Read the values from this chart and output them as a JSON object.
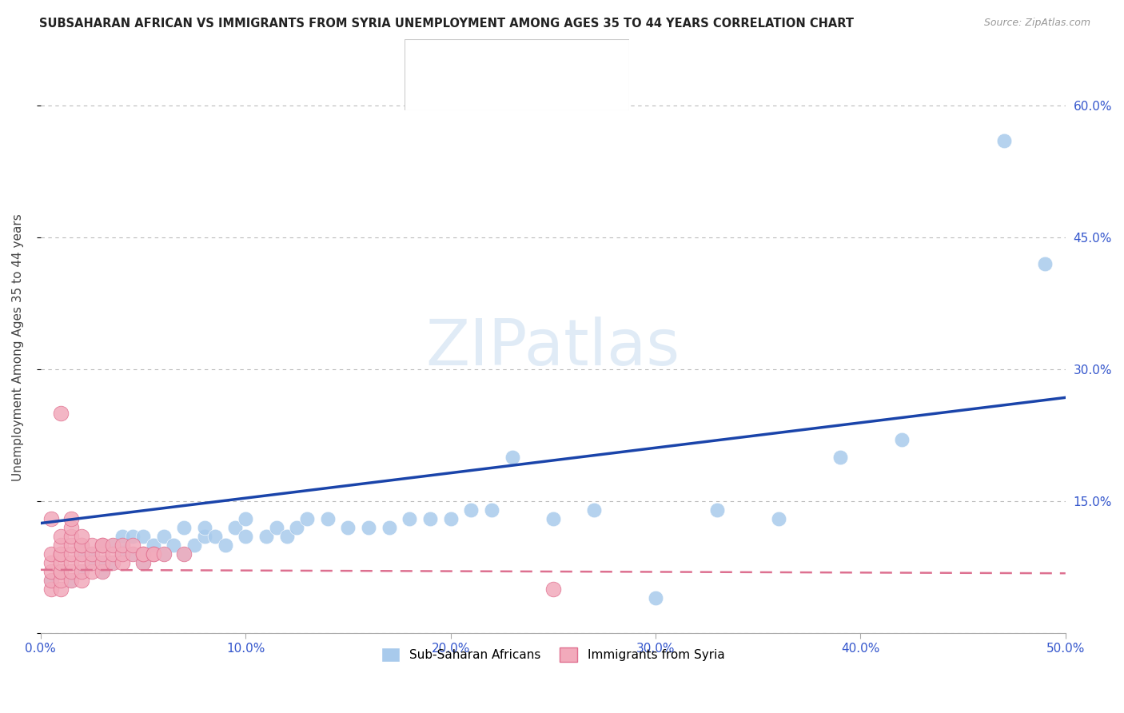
{
  "title": "SUBSAHARAN AFRICAN VS IMMIGRANTS FROM SYRIA UNEMPLOYMENT AMONG AGES 35 TO 44 YEARS CORRELATION CHART",
  "source": "Source: ZipAtlas.com",
  "ylabel": "Unemployment Among Ages 35 to 44 years",
  "xlim": [
    0.0,
    0.5
  ],
  "ylim": [
    0.0,
    0.65
  ],
  "xticks": [
    0.0,
    0.1,
    0.2,
    0.3,
    0.4,
    0.5
  ],
  "yticks": [
    0.0,
    0.15,
    0.3,
    0.45,
    0.6
  ],
  "ytick_labels": [
    "",
    "15.0%",
    "30.0%",
    "45.0%",
    "60.0%"
  ],
  "xtick_labels": [
    "0.0%",
    "10.0%",
    "20.0%",
    "30.0%",
    "40.0%",
    "50.0%"
  ],
  "blue_color": "#A8CAEC",
  "pink_color": "#F2AABB",
  "line_blue_color": "#1A44AA",
  "line_pink_color": "#DD7090",
  "watermark_text": "ZIPatlas",
  "blue_line_x0": 0.0,
  "blue_line_y0": 0.125,
  "blue_line_x1": 0.5,
  "blue_line_y1": 0.268,
  "pink_line_x0": 0.0,
  "pink_line_y0": 0.072,
  "pink_line_x1": 0.5,
  "pink_line_y1": 0.068,
  "sub_saharan_x": [
    0.005,
    0.01,
    0.015,
    0.02,
    0.02,
    0.02,
    0.025,
    0.025,
    0.03,
    0.03,
    0.03,
    0.035,
    0.035,
    0.04,
    0.04,
    0.04,
    0.045,
    0.045,
    0.05,
    0.05,
    0.05,
    0.055,
    0.06,
    0.06,
    0.065,
    0.07,
    0.07,
    0.075,
    0.08,
    0.08,
    0.085,
    0.09,
    0.095,
    0.1,
    0.1,
    0.11,
    0.115,
    0.12,
    0.125,
    0.13,
    0.14,
    0.15,
    0.16,
    0.17,
    0.18,
    0.19,
    0.2,
    0.21,
    0.22,
    0.23,
    0.25,
    0.27,
    0.3,
    0.33,
    0.36,
    0.39,
    0.42,
    0.47,
    0.49
  ],
  "sub_saharan_y": [
    0.06,
    0.07,
    0.06,
    0.07,
    0.09,
    0.1,
    0.08,
    0.09,
    0.07,
    0.08,
    0.1,
    0.08,
    0.1,
    0.09,
    0.1,
    0.11,
    0.09,
    0.11,
    0.08,
    0.09,
    0.11,
    0.1,
    0.09,
    0.11,
    0.1,
    0.09,
    0.12,
    0.1,
    0.11,
    0.12,
    0.11,
    0.1,
    0.12,
    0.11,
    0.13,
    0.11,
    0.12,
    0.11,
    0.12,
    0.13,
    0.13,
    0.12,
    0.12,
    0.12,
    0.13,
    0.13,
    0.13,
    0.14,
    0.14,
    0.2,
    0.13,
    0.14,
    0.04,
    0.14,
    0.13,
    0.2,
    0.22,
    0.56,
    0.42
  ],
  "syria_x": [
    0.005,
    0.005,
    0.005,
    0.005,
    0.005,
    0.01,
    0.01,
    0.01,
    0.01,
    0.01,
    0.01,
    0.01,
    0.01,
    0.01,
    0.015,
    0.015,
    0.015,
    0.015,
    0.015,
    0.015,
    0.02,
    0.02,
    0.02,
    0.02,
    0.02,
    0.02,
    0.025,
    0.025,
    0.025,
    0.025,
    0.03,
    0.03,
    0.03,
    0.03,
    0.03,
    0.035,
    0.035,
    0.035,
    0.04,
    0.04,
    0.04,
    0.045,
    0.045,
    0.05,
    0.05,
    0.05,
    0.055,
    0.055,
    0.06,
    0.07,
    0.005,
    0.01,
    0.015,
    0.015,
    0.02,
    0.25
  ],
  "syria_y": [
    0.05,
    0.06,
    0.07,
    0.08,
    0.09,
    0.05,
    0.06,
    0.07,
    0.07,
    0.08,
    0.09,
    0.09,
    0.1,
    0.11,
    0.06,
    0.07,
    0.08,
    0.09,
    0.1,
    0.11,
    0.06,
    0.07,
    0.08,
    0.09,
    0.1,
    0.1,
    0.07,
    0.08,
    0.09,
    0.1,
    0.07,
    0.08,
    0.09,
    0.1,
    0.1,
    0.08,
    0.09,
    0.1,
    0.08,
    0.09,
    0.1,
    0.09,
    0.1,
    0.08,
    0.09,
    0.09,
    0.09,
    0.09,
    0.09,
    0.09,
    0.13,
    0.25,
    0.12,
    0.13,
    0.11,
    0.05
  ]
}
